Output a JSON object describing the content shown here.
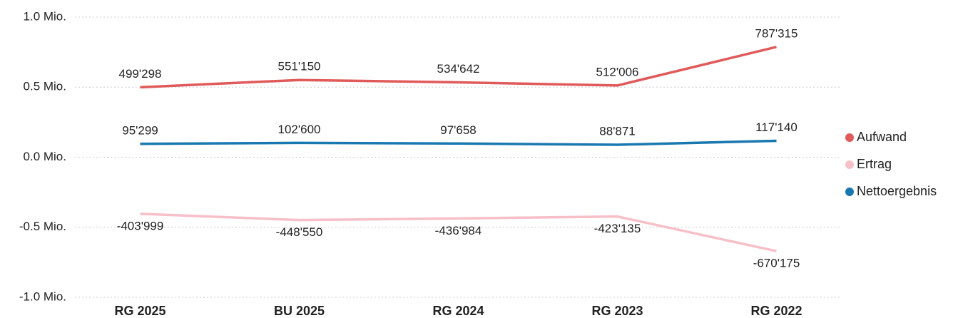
{
  "chart_data": {
    "type": "line",
    "categories": [
      "RG 2025",
      "BU 2025",
      "RG 2024",
      "RG 2023",
      "RG 2022"
    ],
    "series": [
      {
        "name": "Aufwand",
        "color": "#e05a5a",
        "values": [
          499298,
          551150,
          534642,
          512006,
          787315
        ],
        "value_labels": [
          "499'298",
          "551'150",
          "534'642",
          "512'006",
          "787'315"
        ]
      },
      {
        "name": "Ertrag",
        "color": "#f7bfc8",
        "values": [
          -403999,
          -448550,
          -436984,
          -423135,
          -670175
        ],
        "value_labels": [
          "-403'999",
          "-448'550",
          "-436'984",
          "-423'135",
          "-670'175"
        ]
      },
      {
        "name": "Nettoergebnis",
        "color": "#1a78b0",
        "values": [
          95299,
          102600,
          97658,
          88871,
          117140
        ],
        "value_labels": [
          "95'299",
          "102'600",
          "97'658",
          "88'871",
          "117'140"
        ]
      }
    ],
    "ylim": [
      -1000000,
      1000000
    ],
    "yticks": [
      {
        "value": -1000000,
        "label": "-1.0 Mio."
      },
      {
        "value": -500000,
        "label": "-0.5 Mio."
      },
      {
        "value": 0,
        "label": "0.0 Mio."
      },
      {
        "value": 500000,
        "label": "0.5 Mio."
      },
      {
        "value": 1000000,
        "label": "1.0 Mio."
      }
    ],
    "grid": true,
    "legend": "right"
  }
}
